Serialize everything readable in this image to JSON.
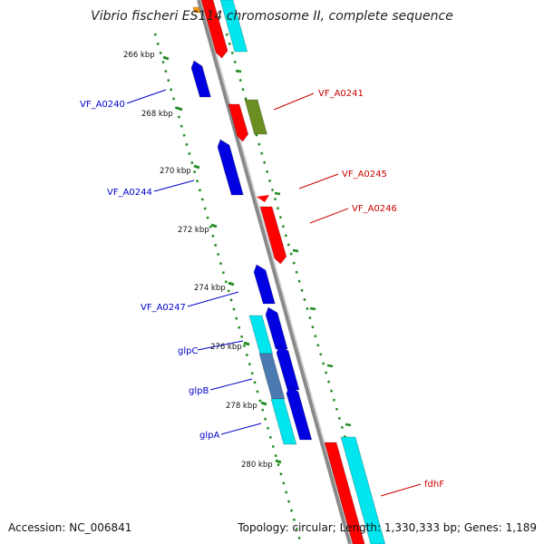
{
  "title": "Vibrio fischeri ES114 chromosome II, complete sequence",
  "footer": {
    "accession": "Accession: NC_006841",
    "summary": "Topology: circular; Length: 1,330,333 bp; Genes: 1,189"
  },
  "colors": {
    "backbone": "#8a8a8a",
    "tick": "#228b22",
    "forward_cds": "#ff0000",
    "reverse_cds": "#0000e0",
    "rrna_like": "#00e5ee",
    "olive": "#6b8e23",
    "label_forward": "#cc0000",
    "label_reverse": "#0000cc"
  },
  "tick_labels": [
    "266 kbp",
    "268 kbp",
    "270 kbp",
    "272 kbp",
    "274 kbp",
    "276 kbp",
    "278 kbp",
    "280 kbp"
  ],
  "gene_labels": [
    {
      "text": "VF_A0240",
      "strand": "reverse"
    },
    {
      "text": "VF_A0241",
      "strand": "forward"
    },
    {
      "text": "VF_A0244",
      "strand": "reverse"
    },
    {
      "text": "VF_A0245",
      "strand": "forward"
    },
    {
      "text": "VF_A0246",
      "strand": "forward"
    },
    {
      "text": "VF_A0247",
      "strand": "reverse"
    },
    {
      "text": "glpC",
      "strand": "reverse"
    },
    {
      "text": "glpB",
      "strand": "reverse"
    },
    {
      "text": "glpA",
      "strand": "reverse"
    },
    {
      "text": "fdhF",
      "strand": "forward"
    }
  ]
}
